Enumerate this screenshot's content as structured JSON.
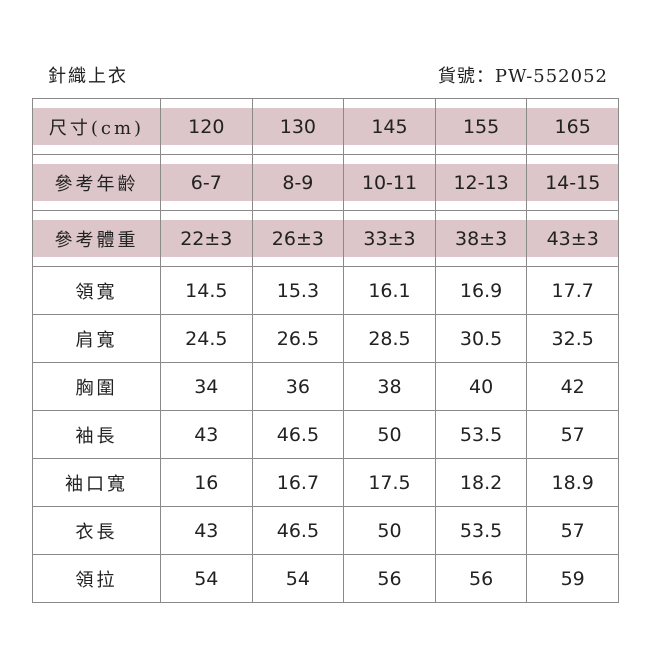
{
  "header": {
    "title": "針織上衣",
    "product_code": "貨號：PW-552052"
  },
  "colors": {
    "header_band": "#dcc6c9",
    "border": "#8a8a8a"
  },
  "header_rows": [
    {
      "label": "尺寸(cm)",
      "values": [
        "120",
        "130",
        "145",
        "155",
        "165"
      ]
    },
    {
      "label": "參考年齡",
      "values": [
        "6-7",
        "8-9",
        "10-11",
        "12-13",
        "14-15"
      ]
    },
    {
      "label": "參考體重",
      "values": [
        "22±3",
        "26±3",
        "33±3",
        "38±3",
        "43±3"
      ]
    }
  ],
  "rows": [
    {
      "label": "領寬",
      "values": [
        "14.5",
        "15.3",
        "16.1",
        "16.9",
        "17.7"
      ]
    },
    {
      "label": "肩寬",
      "values": [
        "24.5",
        "26.5",
        "28.5",
        "30.5",
        "32.5"
      ]
    },
    {
      "label": "胸圍",
      "values": [
        "34",
        "36",
        "38",
        "40",
        "42"
      ]
    },
    {
      "label": "袖長",
      "values": [
        "43",
        "46.5",
        "50",
        "53.5",
        "57"
      ]
    },
    {
      "label": "袖口寬",
      "values": [
        "16",
        "16.7",
        "17.5",
        "18.2",
        "18.9"
      ]
    },
    {
      "label": "衣長",
      "values": [
        "43",
        "46.5",
        "50",
        "53.5",
        "57"
      ]
    },
    {
      "label": "領拉",
      "values": [
        "54",
        "54",
        "56",
        "56",
        "59"
      ]
    }
  ]
}
